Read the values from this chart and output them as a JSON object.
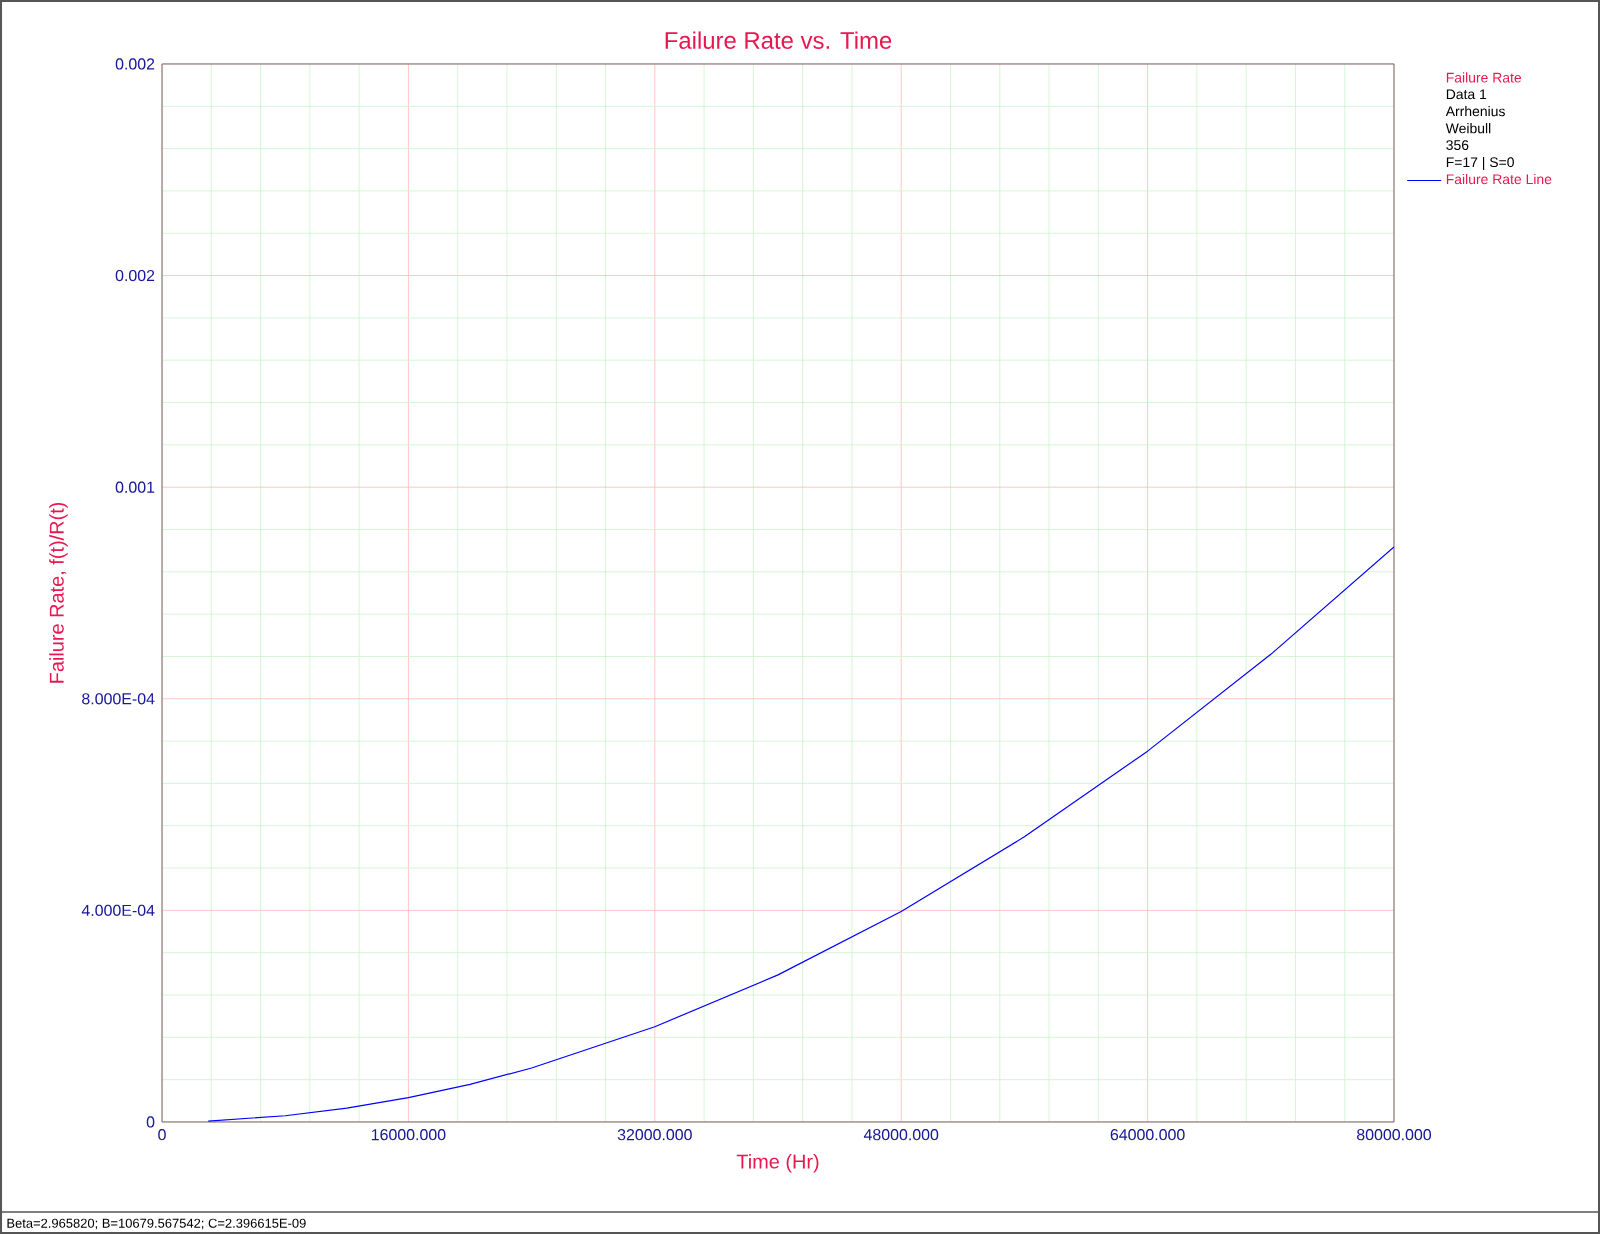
{
  "chart_data": {
    "type": "line",
    "title": "Failure Rate vs. Time",
    "xlabel": "Time (Hr)",
    "ylabel": "Failure Rate, f(t)/R(t)",
    "legend_title": "Failure Rate",
    "x": [
      3000,
      8000,
      12000,
      16000,
      20000,
      24000,
      32000,
      40000,
      48000,
      56000,
      64000,
      72000,
      80000
    ],
    "series": [
      {
        "name": "Failure Rate Line",
        "color": "#0000ff",
        "values": [
          1.7e-06,
          1.18e-05,
          2.61e-05,
          4.59e-05,
          7.12e-05,
          0.000102,
          0.00018,
          0.000278,
          0.000398,
          0.000539,
          0.000701,
          0.000884,
          0.001087
        ]
      }
    ],
    "xlim": [
      0,
      80000
    ],
    "ylim": [
      0,
      0.002
    ],
    "xticks": [
      0,
      {
        "value": 16000,
        "label": "16000.000"
      },
      {
        "value": 32000,
        "label": "32000.000"
      },
      {
        "value": 48000,
        "label": "48000.000"
      },
      {
        "value": 64000,
        "label": "64000.000"
      },
      {
        "value": 80000,
        "label": "80000.000"
      }
    ],
    "yticks": [
      0,
      {
        "value": 0.0004,
        "label": "4.000E-04"
      },
      {
        "value": 0.0008,
        "label": "8.000E-04"
      },
      {
        "value": 0.0012,
        "label": "0.001"
      },
      {
        "value": 0.0016,
        "label": "0.002"
      },
      {
        "value": 0.002,
        "label": "0.002"
      }
    ],
    "grid": true,
    "legend": "top right",
    "marker": "none",
    "line_style": "solid",
    "annotations": [
      "Data 1",
      "Arrhenius",
      "Weibull",
      "356",
      "F=17 | S=0",
      "Beta=2.965820; B=10679.567542; C=2.396615E-09"
    ]
  }
}
